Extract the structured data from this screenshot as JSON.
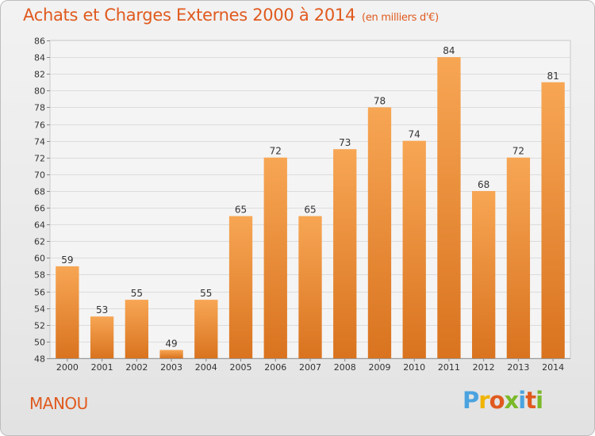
{
  "chart_data": {
    "type": "bar",
    "title": "Achats et Charges Externes 2000 à 2014",
    "subtitle": "(en milliers d'€)",
    "categories": [
      "2000",
      "2001",
      "2002",
      "2003",
      "2004",
      "2005",
      "2006",
      "2007",
      "2008",
      "2009",
      "2010",
      "2011",
      "2012",
      "2013",
      "2014"
    ],
    "values": [
      59,
      53,
      55,
      49,
      55,
      65,
      72,
      65,
      73,
      78,
      74,
      84,
      68,
      72,
      81
    ],
    "ylim": [
      48,
      86
    ],
    "yticks": [
      48,
      50,
      52,
      54,
      56,
      58,
      60,
      62,
      64,
      66,
      68,
      70,
      72,
      74,
      76,
      78,
      80,
      82,
      84,
      86
    ],
    "grid": true,
    "bar_color_top": "#f7a654",
    "bar_color_bottom": "#d9731f"
  },
  "footer": {
    "commune": "MANOU",
    "logo_letters": [
      "P",
      "r",
      "o",
      "x",
      "i",
      "t",
      "i"
    ],
    "logo_colors": [
      "#4aa3df",
      "#f0b400",
      "#e05a1e",
      "#7ab929",
      "#4aa3df",
      "#e05a1e",
      "#7ab929"
    ]
  }
}
